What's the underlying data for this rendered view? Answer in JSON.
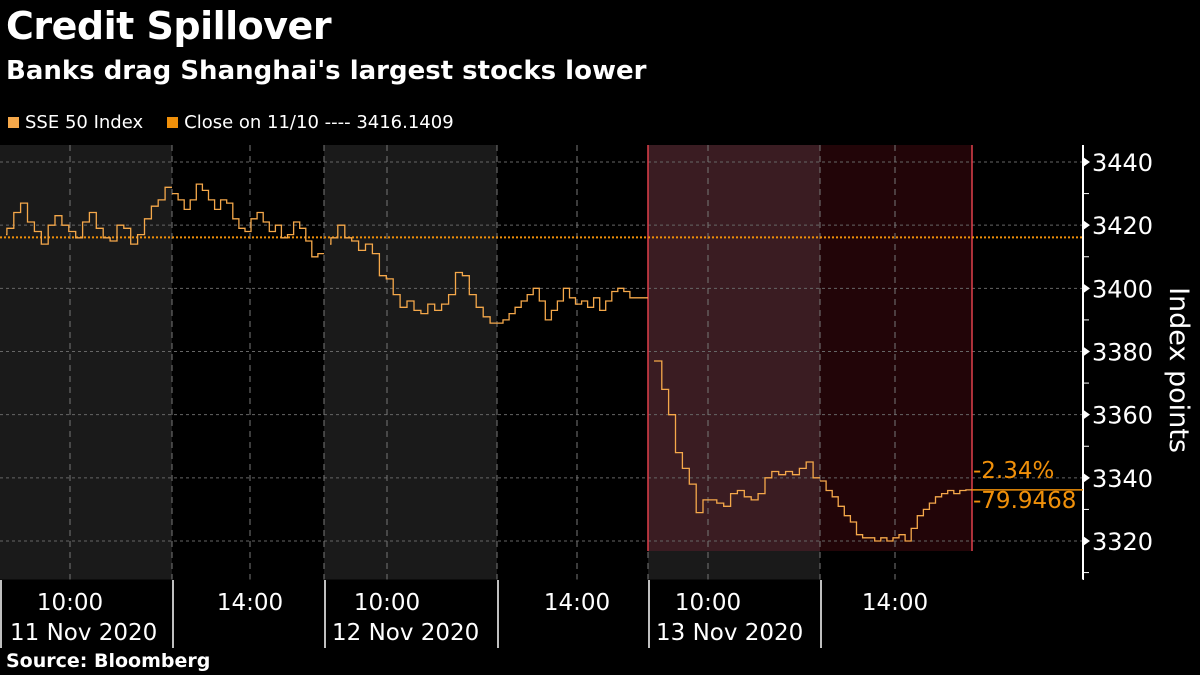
{
  "title": "Credit Spillover",
  "subtitle": "Banks drag Shanghai's largest stocks lower",
  "source": "Source: Bloomberg",
  "colors": {
    "series": "#f5a84a",
    "close_line": "#f0900a",
    "annotation": "#f0900a",
    "highlight_am": "#3a1c22",
    "highlight_pm": "#220508",
    "highlight_border": "#e0404a",
    "shade": "#1a1a1a"
  },
  "chart_data": {
    "type": "line",
    "title": "Credit Spillover",
    "subtitle": "Banks drag Shanghai's largest stocks lower",
    "ylabel": "Index points",
    "ylim": [
      3308,
      3445
    ],
    "yticks": [
      "3440",
      "3420",
      "3400",
      "3380",
      "3360",
      "3340",
      "3320"
    ],
    "grid": true,
    "legend_placement": "top-left",
    "legend": [
      {
        "label": "SSE 50 Index",
        "color": "#f5a84a"
      },
      {
        "label": "Close on 11/10 ---- 3416.1409",
        "color": "#f0900a"
      }
    ],
    "reference_line": {
      "label": "Close on 11/10",
      "value": 3416.1409
    },
    "annotations": {
      "pct_change": "-2.34%",
      "point_change": "-79.9468",
      "last_value": 3336.1941
    },
    "x_tick_labels": [
      {
        "time": "10:00",
        "date": "11 Nov 2020"
      },
      {
        "time": "14:00",
        "date": ""
      },
      {
        "time": "10:00",
        "date": "12 Nov 2020"
      },
      {
        "time": "14:00",
        "date": ""
      },
      {
        "time": "10:00",
        "date": "13 Nov 2020"
      },
      {
        "time": "14:00",
        "date": ""
      }
    ],
    "sessions": [
      {
        "day": "11 Nov 2020",
        "session": "AM",
        "values": [
          3417,
          3419,
          3424,
          3427,
          3421,
          3418,
          3414,
          3420,
          3423,
          3420,
          3418,
          3416,
          3421,
          3424,
          3419,
          3416,
          3415,
          3420,
          3419,
          3414,
          3417,
          3422,
          3426,
          3428,
          3432
        ]
      },
      {
        "day": "11 Nov 2020",
        "session": "PM",
        "values": [
          3430,
          3428,
          3425,
          3428,
          3433,
          3431,
          3428,
          3425,
          3428,
          3427,
          3422,
          3419,
          3418,
          3422,
          3424,
          3421,
          3418,
          3420,
          3416,
          3417,
          3421,
          3419,
          3415,
          3410,
          3411
        ]
      },
      {
        "day": "12 Nov 2020",
        "session": "AM",
        "values": [
          3414,
          3416,
          3420,
          3416,
          3415,
          3412,
          3414,
          3411,
          3404,
          3403,
          3398,
          3394,
          3396,
          3393,
          3392,
          3395,
          3393,
          3395,
          3398,
          3405,
          3404,
          3398,
          3394,
          3391,
          3389
        ]
      },
      {
        "day": "12 Nov 2020",
        "session": "PM",
        "values": [
          3389,
          3390,
          3392,
          3394,
          3396,
          3398,
          3400,
          3396,
          3390,
          3393,
          3396,
          3400,
          3397,
          3395,
          3396,
          3394,
          3397,
          3393,
          3396,
          3399,
          3400,
          3399,
          3397,
          3397,
          3397
        ]
      },
      {
        "day": "13 Nov 2020",
        "session": "AM",
        "values": [
          3377,
          3377,
          3368,
          3360,
          3348,
          3343,
          3338,
          3329,
          3333,
          3333,
          3332,
          3331,
          3335,
          3336,
          3334,
          3333,
          3335,
          3340,
          3342,
          3341,
          3342,
          3341,
          3343,
          3345,
          3340
        ]
      },
      {
        "day": "13 Nov 2020",
        "session": "PM",
        "values": [
          3339,
          3336,
          3334,
          3331,
          3328,
          3326,
          3322,
          3321,
          3321,
          3320,
          3321,
          3320,
          3321,
          3322,
          3320,
          3324,
          3328,
          3330,
          3332,
          3334,
          3335,
          3336,
          3335,
          3336,
          3336.19
        ]
      }
    ]
  }
}
